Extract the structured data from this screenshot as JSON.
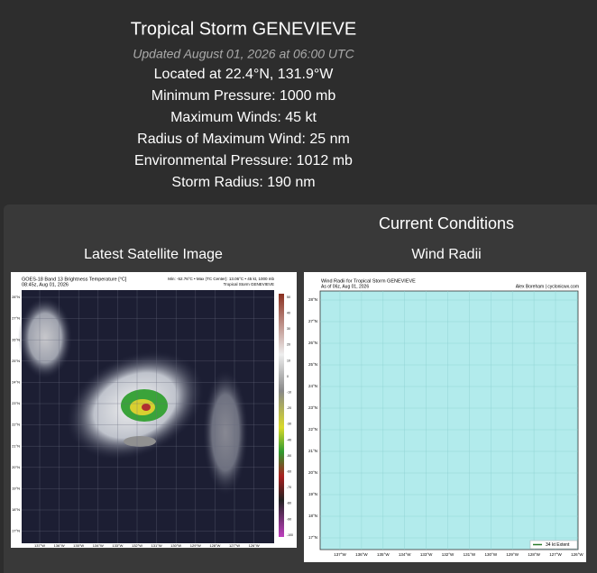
{
  "header": {
    "title": "Tropical Storm GENEVIEVE",
    "updated": "Updated August 01, 2026 at 06:00 UTC",
    "lines": [
      "Located at 22.4°N, 131.9°W",
      "Minimum Pressure: 1000 mb",
      "Maximum Winds: 45 kt",
      "Radius of Maximum Wind: 25 nm",
      "Environmental Pressure: 1012 mb",
      "Storm Radius: 190 nm"
    ]
  },
  "panel": {
    "heading": "Current Conditions",
    "satellite": {
      "caption": "Latest Satellite Image",
      "title": "GOES-18 Band 13 Brightness Temperature [°C]",
      "time": "08:45z, Aug 01, 2026",
      "stats": "Min: -52.76°C • Max (TC Center): 13.06°C • 45 kt, 1000 mb",
      "storm": "Tropical Storm GENEVIEVE",
      "lat_labels": [
        "28°N",
        "27°N",
        "26°N",
        "25°N",
        "24°N",
        "23°N",
        "22°N",
        "21°N",
        "20°N",
        "19°N",
        "18°N",
        "17°N"
      ],
      "lon_labels": [
        "137°W",
        "136°W",
        "135°W",
        "134°W",
        "133°W",
        "132°W",
        "131°W",
        "130°W",
        "129°W",
        "128°W",
        "127°W",
        "126°W"
      ],
      "colorbar_labels": [
        "50",
        "40",
        "30",
        "20",
        "10",
        "0",
        "-10",
        "-20",
        "-30",
        "-40",
        "-50",
        "-60",
        "-70",
        "-80",
        "-90",
        "-100"
      ]
    },
    "wind_radii": {
      "caption": "Wind Radii",
      "title": "Wind Radii for Tropical Storm GENEVIEVE",
      "as_of": "As of 06z, Aug 01, 2026",
      "credit": "Alex Boreham | cyclonicwx.com",
      "legend": "34 kt Extent",
      "lat_labels": [
        "28°N",
        "27°N",
        "26°N",
        "25°N",
        "24°N",
        "23°N",
        "22°N",
        "21°N",
        "20°N",
        "19°N",
        "18°N",
        "17°N"
      ],
      "lon_labels": [
        "137°W",
        "136°W",
        "135°W",
        "134°W",
        "133°W",
        "132°W",
        "131°W",
        "130°W",
        "129°W",
        "128°W",
        "127°W",
        "126°W"
      ]
    }
  }
}
